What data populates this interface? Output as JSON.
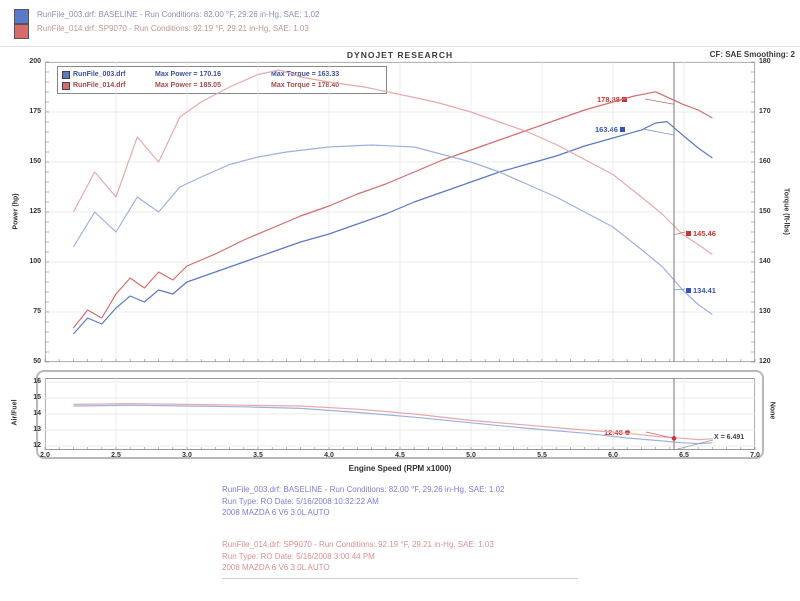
{
  "header": {
    "line1": "RunFile_003.drf: BASELINE  -  Run Conditions: 82.00 °F, 29.26 in-Hg, SAE: 1.02",
    "line2": "RunFile_014.drf: SP9070  -  Run Conditions: 92.19 °F, 29.21 in-Hg, SAE: 1.03"
  },
  "title": "DYNOJET RESEARCH",
  "correction": "CF: SAE   Smoothing: 2",
  "colors": {
    "run1_power": "#5b79c9",
    "run1_torque": "#9db1e0",
    "run2_power": "#d96a6a",
    "run2_torque": "#eaa8a8",
    "callout_red": "#cc3333",
    "callout_blue": "#3355bb"
  },
  "legend": {
    "rows": [
      {
        "file": "RunFile_003.drf",
        "power": "Max Power = 170.16",
        "torque": "Max Torque = 163.33"
      },
      {
        "file": "RunFile_014.drf",
        "power": "Max Power = 185.05",
        "torque": "Max Torque = 178.40"
      }
    ]
  },
  "footer": {
    "run1": {
      "line1": "RunFile_003.drf: BASELINE  -  Run Conditions: 82.00 °F, 29.26 in-Hg, SAE: 1.02",
      "line2": "Run Type: RO  Date: 5/16/2008 10:32:22 AM",
      "line3": "2008 MAZDA 6 V6 3.0L AUTO"
    },
    "run2": {
      "line1": "RunFile_014.drf: SP9070  -  Run Conditions: 92.19 °F, 29.21 in-Hg, SAE: 1.03",
      "line2": "Run Type: RO  Date: 5/16/2008 3:00:44 PM",
      "line3": "2008 MAZDA 6 V6 3.0L AUTO"
    }
  },
  "chart_data": {
    "type": "line",
    "title": "DYNOJET RESEARCH",
    "x_label": "Engine Speed (RPM x1000)",
    "x_range": [
      2.0,
      7.0
    ],
    "x_ticks": [
      2.0,
      2.5,
      3.0,
      3.5,
      4.0,
      4.5,
      5.0,
      5.5,
      6.0,
      6.5,
      7.0
    ],
    "cursor_rpm": 6.491,
    "left_axis": {
      "label": "Power (hp)",
      "range": [
        50,
        200
      ],
      "ticks": [
        200,
        175,
        150,
        125,
        100,
        75,
        50
      ]
    },
    "right_axis": {
      "label": "Torque (ft-lbs)",
      "range": [
        120,
        180
      ],
      "ticks": [
        180,
        170,
        160,
        150,
        140,
        130,
        120
      ]
    },
    "afr_axis": {
      "label": "Air/Fuel",
      "right_label": "None",
      "range": [
        11.75,
        16.25
      ],
      "ticks": [
        16,
        15,
        14,
        13,
        12
      ]
    },
    "series": [
      {
        "name": "run1-power-hp",
        "axis": "power",
        "color": "#5b79c9",
        "points": [
          [
            2.2,
            64
          ],
          [
            2.3,
            72
          ],
          [
            2.4,
            69
          ],
          [
            2.5,
            77
          ],
          [
            2.6,
            83
          ],
          [
            2.7,
            80
          ],
          [
            2.8,
            86
          ],
          [
            2.9,
            84
          ],
          [
            3.0,
            90
          ],
          [
            3.2,
            95
          ],
          [
            3.4,
            100
          ],
          [
            3.6,
            105
          ],
          [
            3.8,
            110
          ],
          [
            4.0,
            114
          ],
          [
            4.2,
            119
          ],
          [
            4.4,
            124
          ],
          [
            4.6,
            130
          ],
          [
            4.8,
            135
          ],
          [
            5.0,
            140
          ],
          [
            5.2,
            145
          ],
          [
            5.4,
            149
          ],
          [
            5.6,
            153
          ],
          [
            5.8,
            158
          ],
          [
            6.0,
            162
          ],
          [
            6.2,
            166
          ],
          [
            6.3,
            169.5
          ],
          [
            6.38,
            170.2
          ],
          [
            6.49,
            163.5
          ],
          [
            6.6,
            157
          ],
          [
            6.7,
            152
          ]
        ]
      },
      {
        "name": "run2-power-hp",
        "axis": "power",
        "color": "#d96a6a",
        "points": [
          [
            2.2,
            67
          ],
          [
            2.3,
            76
          ],
          [
            2.4,
            72
          ],
          [
            2.5,
            84
          ],
          [
            2.6,
            92
          ],
          [
            2.7,
            87
          ],
          [
            2.8,
            95
          ],
          [
            2.9,
            91
          ],
          [
            3.0,
            98
          ],
          [
            3.2,
            104
          ],
          [
            3.4,
            111
          ],
          [
            3.6,
            117
          ],
          [
            3.8,
            123
          ],
          [
            4.0,
            128
          ],
          [
            4.2,
            134
          ],
          [
            4.4,
            139
          ],
          [
            4.6,
            145
          ],
          [
            4.8,
            151
          ],
          [
            5.0,
            156
          ],
          [
            5.2,
            161
          ],
          [
            5.4,
            166
          ],
          [
            5.6,
            171
          ],
          [
            5.8,
            176
          ],
          [
            6.0,
            180
          ],
          [
            6.15,
            183
          ],
          [
            6.3,
            185.1
          ],
          [
            6.49,
            178.9
          ],
          [
            6.6,
            176
          ],
          [
            6.7,
            172
          ]
        ]
      },
      {
        "name": "run1-torque-ftlbs",
        "axis": "torque",
        "color": "#9db1e0",
        "points": [
          [
            2.2,
            143
          ],
          [
            2.35,
            150
          ],
          [
            2.5,
            146
          ],
          [
            2.65,
            153
          ],
          [
            2.8,
            150
          ],
          [
            2.95,
            155
          ],
          [
            3.1,
            157
          ],
          [
            3.3,
            159.5
          ],
          [
            3.5,
            161
          ],
          [
            3.7,
            162
          ],
          [
            4.0,
            163
          ],
          [
            4.3,
            163.4
          ],
          [
            4.6,
            163
          ],
          [
            4.8,
            161.5
          ],
          [
            5.0,
            160
          ],
          [
            5.2,
            158
          ],
          [
            5.4,
            155.5
          ],
          [
            5.6,
            153
          ],
          [
            5.8,
            150
          ],
          [
            6.0,
            147
          ],
          [
            6.2,
            142.5
          ],
          [
            6.35,
            139
          ],
          [
            6.49,
            134.4
          ],
          [
            6.6,
            131.5
          ],
          [
            6.7,
            129.5
          ]
        ]
      },
      {
        "name": "run2-torque-ftlbs",
        "axis": "torque",
        "color": "#eaa8a8",
        "points": [
          [
            2.2,
            150
          ],
          [
            2.35,
            158
          ],
          [
            2.5,
            153
          ],
          [
            2.65,
            165
          ],
          [
            2.8,
            160
          ],
          [
            2.95,
            169
          ],
          [
            3.1,
            172
          ],
          [
            3.3,
            175
          ],
          [
            3.5,
            177.5
          ],
          [
            3.65,
            178.4
          ],
          [
            3.8,
            177
          ],
          [
            4.0,
            176
          ],
          [
            4.25,
            175
          ],
          [
            4.5,
            173.5
          ],
          [
            4.75,
            172
          ],
          [
            5.0,
            170
          ],
          [
            5.2,
            168
          ],
          [
            5.4,
            166
          ],
          [
            5.6,
            163.5
          ],
          [
            5.8,
            160.5
          ],
          [
            6.0,
            157.5
          ],
          [
            6.2,
            153
          ],
          [
            6.35,
            149.5
          ],
          [
            6.49,
            145.5
          ],
          [
            6.6,
            143.5
          ],
          [
            6.7,
            141.5
          ]
        ]
      },
      {
        "name": "run1-afr",
        "axis": "afr",
        "color": "#9db1e0",
        "points": [
          [
            2.2,
            14.5
          ],
          [
            2.6,
            14.55
          ],
          [
            3.0,
            14.5
          ],
          [
            3.4,
            14.45
          ],
          [
            3.8,
            14.35
          ],
          [
            4.2,
            14.1
          ],
          [
            4.6,
            13.8
          ],
          [
            5.0,
            13.45
          ],
          [
            5.4,
            13.1
          ],
          [
            5.8,
            12.8
          ],
          [
            6.1,
            12.5
          ],
          [
            6.3,
            12.35
          ],
          [
            6.49,
            12.2
          ],
          [
            6.6,
            12.15
          ],
          [
            6.7,
            12.2
          ]
        ]
      },
      {
        "name": "run2-afr",
        "axis": "afr",
        "color": "#eaa8a8",
        "points": [
          [
            2.2,
            14.6
          ],
          [
            2.6,
            14.65
          ],
          [
            3.0,
            14.6
          ],
          [
            3.4,
            14.55
          ],
          [
            3.8,
            14.5
          ],
          [
            4.2,
            14.3
          ],
          [
            4.6,
            14.0
          ],
          [
            5.0,
            13.6
          ],
          [
            5.4,
            13.3
          ],
          [
            5.8,
            13.0
          ],
          [
            6.1,
            12.8
          ],
          [
            6.3,
            12.6
          ],
          [
            6.49,
            12.48
          ],
          [
            6.6,
            12.4
          ],
          [
            6.7,
            12.45
          ]
        ]
      }
    ],
    "cursor_values": {
      "run2_power": "178.88",
      "run1_power": "163.46",
      "run2_torque": "145.46",
      "run1_torque": "134.41",
      "run2_afr": "12.48",
      "rpm_label": "X = 6.491"
    }
  }
}
